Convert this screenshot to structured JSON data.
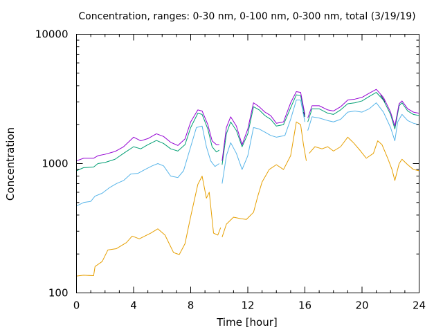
{
  "chart_data": {
    "type": "line",
    "title": "Concentration, ranges: 0-30 nm, 0-100 nm, 0-300 nm, total (3/19/19)",
    "xlabel": "Time [hour]",
    "ylabel": "Concentration",
    "xlim": [
      0,
      24
    ],
    "ylim": [
      100,
      10000
    ],
    "yscale": "log",
    "xticks": [
      0,
      4,
      8,
      12,
      16,
      20,
      24
    ],
    "xtick_labels": [
      "0",
      "4",
      "8",
      "12",
      "16",
      "20",
      "24"
    ],
    "yticks": [
      100,
      1000,
      10000
    ],
    "ytick_labels": [
      "100",
      "1000",
      "10000"
    ],
    "grid": false,
    "series": [
      {
        "color": "#e69f00",
        "segments": [
          [
            [
              0,
              135
            ],
            [
              0.5,
              137
            ],
            [
              1.2,
              136
            ],
            [
              1.3,
              160
            ],
            [
              1.8,
              175
            ],
            [
              2.2,
              215
            ],
            [
              2.8,
              220
            ],
            [
              3.5,
              245
            ],
            [
              3.9,
              275
            ],
            [
              4.4,
              262
            ],
            [
              5.2,
              290
            ],
            [
              5.7,
              313
            ],
            [
              6.2,
              280
            ],
            [
              6.8,
              205
            ],
            [
              7.2,
              198
            ],
            [
              7.6,
              240
            ],
            [
              8.0,
              390
            ],
            [
              8.5,
              690
            ],
            [
              8.8,
              800
            ],
            [
              9.1,
              540
            ],
            [
              9.3,
              600
            ],
            [
              9.6,
              290
            ],
            [
              9.9,
              280
            ],
            [
              10.1,
              320
            ]
          ],
          [
            [
              10.2,
              270
            ],
            [
              10.5,
              340
            ],
            [
              11.0,
              385
            ],
            [
              11.5,
              375
            ],
            [
              11.9,
              370
            ],
            [
              12.4,
              420
            ],
            [
              12.7,
              560
            ],
            [
              13.0,
              720
            ],
            [
              13.5,
              900
            ],
            [
              14.0,
              980
            ],
            [
              14.5,
              900
            ],
            [
              15.0,
              1150
            ],
            [
              15.4,
              2100
            ],
            [
              15.7,
              2000
            ],
            [
              15.9,
              1400
            ],
            [
              16.1,
              1050
            ]
          ],
          [
            [
              16.3,
              1200
            ],
            [
              16.7,
              1350
            ],
            [
              17.2,
              1300
            ],
            [
              17.6,
              1350
            ],
            [
              18.0,
              1250
            ],
            [
              18.5,
              1350
            ],
            [
              19.0,
              1600
            ],
            [
              19.4,
              1450
            ],
            [
              19.9,
              1250
            ],
            [
              20.3,
              1100
            ],
            [
              20.8,
              1200
            ],
            [
              21.1,
              1500
            ],
            [
              21.4,
              1400
            ],
            [
              21.8,
              1100
            ],
            [
              22.1,
              900
            ],
            [
              22.3,
              740
            ],
            [
              22.6,
              1000
            ],
            [
              22.8,
              1080
            ],
            [
              23.2,
              980
            ],
            [
              23.6,
              900
            ],
            [
              24,
              880
            ]
          ]
        ]
      },
      {
        "color": "#56b4e9",
        "segments": [
          [
            [
              0,
              470
            ],
            [
              0.5,
              500
            ],
            [
              1.0,
              510
            ],
            [
              1.3,
              560
            ],
            [
              1.8,
              590
            ],
            [
              2.3,
              650
            ],
            [
              2.8,
              700
            ],
            [
              3.3,
              740
            ],
            [
              3.8,
              830
            ],
            [
              4.3,
              840
            ],
            [
              4.8,
              900
            ],
            [
              5.3,
              960
            ],
            [
              5.7,
              1000
            ],
            [
              6.1,
              960
            ],
            [
              6.6,
              800
            ],
            [
              7.1,
              780
            ],
            [
              7.5,
              880
            ],
            [
              8.0,
              1350
            ],
            [
              8.4,
              1900
            ],
            [
              8.8,
              1950
            ],
            [
              9.1,
              1350
            ],
            [
              9.4,
              1050
            ],
            [
              9.7,
              950
            ],
            [
              10.0,
              1000
            ]
          ],
          [
            [
              10.2,
              700
            ],
            [
              10.5,
              1150
            ],
            [
              10.8,
              1450
            ],
            [
              11.2,
              1200
            ],
            [
              11.6,
              900
            ],
            [
              12.0,
              1150
            ],
            [
              12.4,
              1900
            ],
            [
              12.8,
              1850
            ],
            [
              13.2,
              1750
            ],
            [
              13.6,
              1650
            ],
            [
              14.0,
              1600
            ],
            [
              14.6,
              1650
            ],
            [
              15.0,
              2200
            ],
            [
              15.4,
              3100
            ],
            [
              15.7,
              3100
            ],
            [
              16.0,
              2100
            ]
          ],
          [
            [
              16.2,
              1800
            ],
            [
              16.5,
              2300
            ],
            [
              17.0,
              2250
            ],
            [
              17.6,
              2150
            ],
            [
              18.0,
              2100
            ],
            [
              18.5,
              2200
            ],
            [
              19.0,
              2500
            ],
            [
              19.5,
              2550
            ],
            [
              20.0,
              2500
            ],
            [
              20.5,
              2650
            ],
            [
              21.0,
              2950
            ],
            [
              21.5,
              2500
            ],
            [
              22.0,
              1900
            ],
            [
              22.3,
              1500
            ],
            [
              22.5,
              2100
            ],
            [
              22.8,
              2400
            ],
            [
              23.2,
              2150
            ],
            [
              23.6,
              2050
            ],
            [
              24,
              2000
            ]
          ]
        ]
      },
      {
        "color": "#009e73",
        "segments": [
          [
            [
              0,
              880
            ],
            [
              0.5,
              930
            ],
            [
              1.2,
              940
            ],
            [
              1.5,
              1000
            ],
            [
              2.0,
              1020
            ],
            [
              2.7,
              1080
            ],
            [
              3.3,
              1200
            ],
            [
              4.0,
              1350
            ],
            [
              4.5,
              1300
            ],
            [
              5.0,
              1400
            ],
            [
              5.6,
              1510
            ],
            [
              6.1,
              1430
            ],
            [
              6.6,
              1300
            ],
            [
              7.1,
              1250
            ],
            [
              7.6,
              1400
            ],
            [
              8.0,
              1900
            ],
            [
              8.5,
              2450
            ],
            [
              8.8,
              2400
            ],
            [
              9.2,
              1850
            ],
            [
              9.5,
              1350
            ],
            [
              9.8,
              1230
            ],
            [
              10.0,
              1270
            ]
          ],
          [
            [
              10.2,
              980
            ],
            [
              10.5,
              1700
            ],
            [
              10.8,
              2100
            ],
            [
              11.2,
              1800
            ],
            [
              11.6,
              1350
            ],
            [
              12.0,
              1700
            ],
            [
              12.4,
              2750
            ],
            [
              12.8,
              2600
            ],
            [
              13.2,
              2350
            ],
            [
              13.6,
              2200
            ],
            [
              14.0,
              1950
            ],
            [
              14.5,
              2000
            ],
            [
              15.0,
              2700
            ],
            [
              15.4,
              3400
            ],
            [
              15.7,
              3350
            ],
            [
              16.0,
              2300
            ]
          ],
          [
            [
              16.2,
              2100
            ],
            [
              16.5,
              2650
            ],
            [
              17.0,
              2650
            ],
            [
              17.6,
              2450
            ],
            [
              18.0,
              2400
            ],
            [
              18.5,
              2600
            ],
            [
              19.0,
              2900
            ],
            [
              19.5,
              2950
            ],
            [
              20.0,
              3050
            ],
            [
              20.5,
              3300
            ],
            [
              21.0,
              3550
            ],
            [
              21.5,
              3100
            ],
            [
              22.0,
              2400
            ],
            [
              22.3,
              1850
            ],
            [
              22.6,
              2800
            ],
            [
              22.8,
              2950
            ],
            [
              23.2,
              2550
            ],
            [
              23.6,
              2400
            ],
            [
              24,
              2350
            ]
          ]
        ]
      },
      {
        "color": "#9400d3",
        "segments": [
          [
            [
              0,
              1050
            ],
            [
              0.5,
              1100
            ],
            [
              1.2,
              1100
            ],
            [
              1.5,
              1150
            ],
            [
              2.0,
              1180
            ],
            [
              2.7,
              1240
            ],
            [
              3.3,
              1350
            ],
            [
              4.0,
              1600
            ],
            [
              4.5,
              1500
            ],
            [
              5.0,
              1560
            ],
            [
              5.6,
              1700
            ],
            [
              6.1,
              1620
            ],
            [
              6.6,
              1460
            ],
            [
              7.1,
              1380
            ],
            [
              7.6,
              1550
            ],
            [
              8.0,
              2100
            ],
            [
              8.5,
              2600
            ],
            [
              8.8,
              2550
            ],
            [
              9.2,
              2000
            ],
            [
              9.5,
              1500
            ],
            [
              9.8,
              1400
            ],
            [
              10.0,
              1400
            ]
          ],
          [
            [
              10.2,
              1050
            ],
            [
              10.5,
              1900
            ],
            [
              10.8,
              2300
            ],
            [
              11.2,
              1950
            ],
            [
              11.6,
              1400
            ],
            [
              12.0,
              1850
            ],
            [
              12.4,
              2950
            ],
            [
              12.8,
              2750
            ],
            [
              13.2,
              2500
            ],
            [
              13.6,
              2350
            ],
            [
              14.0,
              2050
            ],
            [
              14.5,
              2100
            ],
            [
              15.0,
              2950
            ],
            [
              15.4,
              3600
            ],
            [
              15.7,
              3550
            ],
            [
              16.0,
              2400
            ]
          ],
          [
            [
              16.2,
              2250
            ],
            [
              16.5,
              2800
            ],
            [
              17.0,
              2800
            ],
            [
              17.6,
              2600
            ],
            [
              18.0,
              2550
            ],
            [
              18.5,
              2750
            ],
            [
              19.0,
              3100
            ],
            [
              19.5,
              3150
            ],
            [
              20.0,
              3250
            ],
            [
              20.5,
              3500
            ],
            [
              21.0,
              3750
            ],
            [
              21.5,
              3250
            ],
            [
              22.0,
              2500
            ],
            [
              22.3,
              1950
            ],
            [
              22.6,
              2900
            ],
            [
              22.8,
              3050
            ],
            [
              23.2,
              2650
            ],
            [
              23.6,
              2500
            ],
            [
              24,
              2450
            ]
          ]
        ]
      },
      {
        "color": "#0b2a5c",
        "segments": [
          [
            [
              15.9,
              2500
            ],
            [
              16.0,
              2300
            ]
          ],
          [
            [
              21.3,
              3400
            ],
            [
              21.6,
              3000
            ]
          ]
        ]
      }
    ]
  }
}
